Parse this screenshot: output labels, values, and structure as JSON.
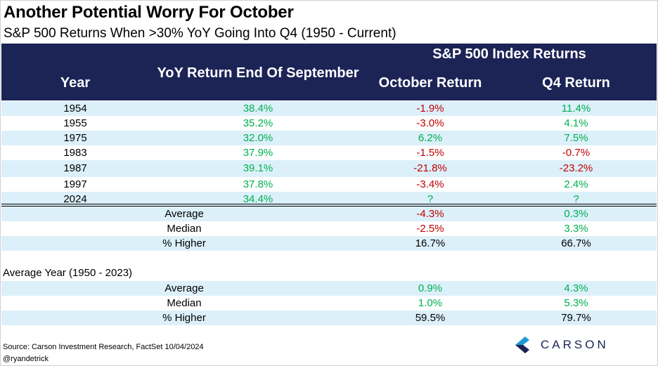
{
  "title": "Another Potential Worry For October",
  "subtitle": "S&P 500 Returns When >30% YoY Going Into Q4 (1950 - Current)",
  "header": {
    "group": "S&P 500 Index Returns",
    "year": "Year",
    "yoy": "YoY Return End Of September",
    "october": "October Return",
    "q4": "Q4 Return"
  },
  "rows": [
    {
      "year": "1954",
      "yoy": "38.4%",
      "october": "-1.9%",
      "q4": "11.4%"
    },
    {
      "year": "1955",
      "yoy": "35.2%",
      "october": "-3.0%",
      "q4": "4.1%"
    },
    {
      "year": "1975",
      "yoy": "32.0%",
      "october": "6.2%",
      "q4": "7.5%"
    },
    {
      "year": "1983",
      "yoy": "37.9%",
      "october": "-1.5%",
      "q4": "-0.7%"
    },
    {
      "year": "1987",
      "yoy": "39.1%",
      "october": "-21.8%",
      "q4": "-23.2%"
    },
    {
      "year": "1997",
      "yoy": "37.8%",
      "october": "-3.4%",
      "q4": "2.4%"
    },
    {
      "year": "2024",
      "yoy": "34.4%",
      "october": "?",
      "q4": "?"
    }
  ],
  "summary": [
    {
      "label": "Average",
      "october": "-4.3%",
      "q4": "0.3%"
    },
    {
      "label": "Median",
      "october": "-2.5%",
      "q4": "3.3%"
    },
    {
      "label": "% Higher",
      "october": "16.7%",
      "q4": "66.7%"
    }
  ],
  "avg_year": {
    "label": "Average Year (1950 - 2023)",
    "rows": [
      {
        "label": "Average",
        "october": "0.9%",
        "q4": "4.3%"
      },
      {
        "label": "Median",
        "october": "1.0%",
        "q4": "5.3%"
      },
      {
        "label": "% Higher",
        "october": "59.5%",
        "q4": "79.7%"
      }
    ]
  },
  "source": "Source: Carson Investment Research, FactSet 10/04/2024",
  "handle": "@ryandetrick",
  "logo": {
    "text": "CARSON",
    "icon": "carson-chevron-icon"
  },
  "colors": {
    "header_bg": "#1c2456",
    "row_shade": "#dcf0fa",
    "positive": "#00b050",
    "negative": "#c00000"
  }
}
